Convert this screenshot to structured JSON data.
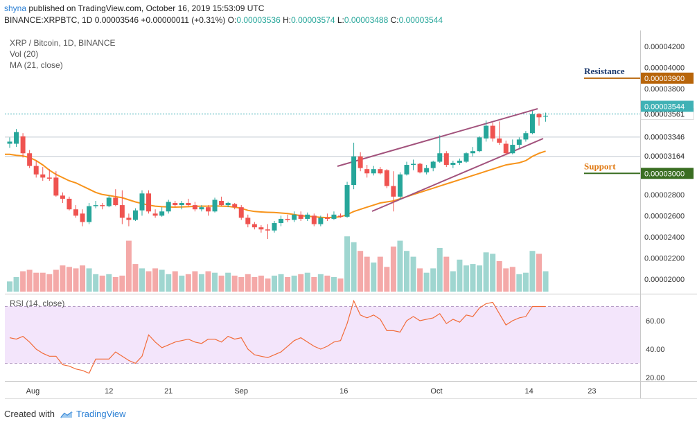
{
  "header": {
    "publisher": "shyna",
    "published_text": "published on TradingView.com, October 16, 2019 15:53:09 UTC",
    "symbol": "BINANCE:XRPBTC, 1D",
    "last": "0.00003546",
    "change": "+0.00000011 (+0.31%)",
    "o_label": "O:",
    "o": "0.00003536",
    "h_label": "H:",
    "h": "0.00003574",
    "l_label": "L:",
    "l": "0.00003488",
    "c_label": "C:",
    "c": "0.00003544"
  },
  "legends": {
    "title": "XRP / Bitcoin, 1D, BINANCE",
    "vol": "Vol (20)",
    "ma": "MA (21, close)",
    "rsi": "RSI (14, close)"
  },
  "annotations": {
    "resistance": "Resistance",
    "support": "Support"
  },
  "footer": {
    "created_with": "Created with",
    "brand": "TradingView"
  },
  "colors": {
    "up": "#26a69a",
    "down": "#ef5350",
    "ma": "#f7931a",
    "trend": "#a2527c",
    "resistance": "#b8650a",
    "support": "#3a6e22",
    "rsi_line": "#f26b38",
    "rsi_band": "#f3e5fb",
    "price_tag": "#3fb1b5"
  },
  "chart_data": {
    "type": "candlestick",
    "main_yticks": [
      "0.00004200",
      "0.00004000",
      "0.00003800",
      "0.00003561",
      "0.00003544",
      "0.00003346",
      "0.00003164",
      "0.00003000",
      "0.00002800",
      "0.00002600",
      "0.00002400",
      "0.00002200",
      "0.00002000"
    ],
    "xticks": [
      "Aug",
      "12",
      "21",
      "Sep",
      "16",
      "Oct",
      "14",
      "23"
    ],
    "price_labels": {
      "resistance_level": "0.00003900",
      "high_marker": "0.00003561",
      "current": "0.00003544",
      "level_a": "0.00003346",
      "level_b": "0.00003164",
      "support_level": "0.00003000"
    },
    "resistance_level": 3.9e-05,
    "support_level": 3e-05,
    "candles": [
      {
        "o": 3.28e-05,
        "h": 3.34e-05,
        "l": 3.24e-05,
        "c": 3.3e-05
      },
      {
        "o": 3.28e-05,
        "h": 3.42e-05,
        "l": 3.25e-05,
        "c": 3.39e-05
      },
      {
        "o": 3.35e-05,
        "h": 3.38e-05,
        "l": 3.15e-05,
        "c": 3.19e-05
      },
      {
        "o": 3.19e-05,
        "h": 3.22e-05,
        "l": 3.05e-05,
        "c": 3.07e-05
      },
      {
        "o": 3.07e-05,
        "h": 3.12e-05,
        "l": 2.96e-05,
        "c": 2.99e-05
      },
      {
        "o": 2.99e-05,
        "h": 3.06e-05,
        "l": 2.93e-05,
        "c": 2.96e-05
      },
      {
        "o": 2.96e-05,
        "h": 3.04e-05,
        "l": 2.93e-05,
        "c": 2.95e-05
      },
      {
        "o": 2.96e-05,
        "h": 3.02e-05,
        "l": 2.78e-05,
        "c": 2.79e-05
      },
      {
        "o": 2.79e-05,
        "h": 2.82e-05,
        "l": 2.72e-05,
        "c": 2.76e-05
      },
      {
        "o": 2.76e-05,
        "h": 2.78e-05,
        "l": 2.65e-05,
        "c": 2.66e-05
      },
      {
        "o": 2.66e-05,
        "h": 2.7e-05,
        "l": 2.58e-05,
        "c": 2.6e-05
      },
      {
        "o": 2.62e-05,
        "h": 2.66e-05,
        "l": 2.5e-05,
        "c": 2.54e-05
      },
      {
        "o": 2.54e-05,
        "h": 2.72e-05,
        "l": 2.52e-05,
        "c": 2.69e-05
      },
      {
        "o": 2.69e-05,
        "h": 2.74e-05,
        "l": 2.67e-05,
        "c": 2.7e-05
      },
      {
        "o": 2.7e-05,
        "h": 2.72e-05,
        "l": 2.66e-05,
        "c": 2.69e-05
      },
      {
        "o": 2.69e-05,
        "h": 2.79e-05,
        "l": 2.68e-05,
        "c": 2.77e-05
      },
      {
        "o": 2.77e-05,
        "h": 2.85e-05,
        "l": 2.69e-05,
        "c": 2.7e-05
      },
      {
        "o": 2.7e-05,
        "h": 2.84e-05,
        "l": 2.52e-05,
        "c": 2.58e-05
      },
      {
        "o": 2.58e-05,
        "h": 2.62e-05,
        "l": 2.5e-05,
        "c": 2.56e-05
      },
      {
        "o": 2.56e-05,
        "h": 2.67e-05,
        "l": 2.55e-05,
        "c": 2.65e-05
      },
      {
        "o": 2.65e-05,
        "h": 2.84e-05,
        "l": 2.6e-05,
        "c": 2.81e-05
      },
      {
        "o": 2.81e-05,
        "h": 2.84e-05,
        "l": 2.62e-05,
        "c": 2.64e-05
      },
      {
        "o": 2.62e-05,
        "h": 2.66e-05,
        "l": 2.58e-05,
        "c": 2.6e-05
      },
      {
        "o": 2.6e-05,
        "h": 2.68e-05,
        "l": 2.59e-05,
        "c": 2.64e-05
      },
      {
        "o": 2.64e-05,
        "h": 2.75e-05,
        "l": 2.62e-05,
        "c": 2.73e-05
      },
      {
        "o": 2.72e-05,
        "h": 2.74e-05,
        "l": 2.68e-05,
        "c": 2.7e-05
      },
      {
        "o": 2.7e-05,
        "h": 2.74e-05,
        "l": 2.66e-05,
        "c": 2.72e-05
      },
      {
        "o": 2.72e-05,
        "h": 2.76e-05,
        "l": 2.69e-05,
        "c": 2.7e-05
      },
      {
        "o": 2.7e-05,
        "h": 2.73e-05,
        "l": 2.64e-05,
        "c": 2.66e-05
      },
      {
        "o": 2.66e-05,
        "h": 2.7e-05,
        "l": 2.64e-05,
        "c": 2.68e-05
      },
      {
        "o": 2.68e-05,
        "h": 2.7e-05,
        "l": 2.6e-05,
        "c": 2.64e-05
      },
      {
        "o": 2.64e-05,
        "h": 2.77e-05,
        "l": 2.63e-05,
        "c": 2.75e-05
      },
      {
        "o": 2.74e-05,
        "h": 2.78e-05,
        "l": 2.69e-05,
        "c": 2.7e-05
      },
      {
        "o": 2.7e-05,
        "h": 2.73e-05,
        "l": 2.68e-05,
        "c": 2.72e-05
      },
      {
        "o": 2.71e-05,
        "h": 2.72e-05,
        "l": 2.66e-05,
        "c": 2.68e-05
      },
      {
        "o": 2.68e-05,
        "h": 2.7e-05,
        "l": 2.56e-05,
        "c": 2.58e-05
      },
      {
        "o": 2.58e-05,
        "h": 2.61e-05,
        "l": 2.49e-05,
        "c": 2.52e-05
      },
      {
        "o": 2.52e-05,
        "h": 2.54e-05,
        "l": 2.47e-05,
        "c": 2.49e-05
      },
      {
        "o": 2.49e-05,
        "h": 2.51e-05,
        "l": 2.44e-05,
        "c": 2.47e-05
      },
      {
        "o": 2.47e-05,
        "h": 2.52e-05,
        "l": 2.38e-05,
        "c": 2.46e-05
      },
      {
        "o": 2.46e-05,
        "h": 2.55e-05,
        "l": 2.44e-05,
        "c": 2.53e-05
      },
      {
        "o": 2.53e-05,
        "h": 2.6e-05,
        "l": 2.5e-05,
        "c": 2.57e-05
      },
      {
        "o": 2.57e-05,
        "h": 2.61e-05,
        "l": 2.54e-05,
        "c": 2.56e-05
      },
      {
        "o": 2.56e-05,
        "h": 2.64e-05,
        "l": 2.54e-05,
        "c": 2.61e-05
      },
      {
        "o": 2.61e-05,
        "h": 2.64e-05,
        "l": 2.55e-05,
        "c": 2.57e-05
      },
      {
        "o": 2.57e-05,
        "h": 2.63e-05,
        "l": 2.55e-05,
        "c": 2.61e-05
      },
      {
        "o": 2.6e-05,
        "h": 2.62e-05,
        "l": 2.5e-05,
        "c": 2.52e-05
      },
      {
        "o": 2.52e-05,
        "h": 2.6e-05,
        "l": 2.5e-05,
        "c": 2.58e-05
      },
      {
        "o": 2.58e-05,
        "h": 2.62e-05,
        "l": 2.55e-05,
        "c": 2.57e-05
      },
      {
        "o": 2.57e-05,
        "h": 2.64e-05,
        "l": 2.56e-05,
        "c": 2.61e-05
      },
      {
        "o": 2.6e-05,
        "h": 2.62e-05,
        "l": 2.58e-05,
        "c": 2.59e-05
      },
      {
        "o": 2.59e-05,
        "h": 2.92e-05,
        "l": 2.58e-05,
        "c": 2.89e-05
      },
      {
        "o": 2.89e-05,
        "h": 3.29e-05,
        "l": 2.85e-05,
        "c": 3.16e-05
      },
      {
        "o": 3.16e-05,
        "h": 3.2e-05,
        "l": 3.02e-05,
        "c": 3.05e-05
      },
      {
        "o": 3.04e-05,
        "h": 3.08e-05,
        "l": 2.96e-05,
        "c": 3e-05
      },
      {
        "o": 3e-05,
        "h": 3.07e-05,
        "l": 2.98e-05,
        "c": 3.04e-05
      },
      {
        "o": 3.04e-05,
        "h": 3.06e-05,
        "l": 2.99e-05,
        "c": 3e-05
      },
      {
        "o": 3.03e-05,
        "h": 3.04e-05,
        "l": 2.86e-05,
        "c": 2.88e-05
      },
      {
        "o": 2.88e-05,
        "h": 3.02e-05,
        "l": 2.64e-05,
        "c": 2.78e-05
      },
      {
        "o": 2.78e-05,
        "h": 3.01e-05,
        "l": 2.75e-05,
        "c": 2.99e-05
      },
      {
        "o": 2.99e-05,
        "h": 3.11e-05,
        "l": 2.98e-05,
        "c": 3.08e-05
      },
      {
        "o": 3.08e-05,
        "h": 3.13e-05,
        "l": 3.03e-05,
        "c": 3.09e-05
      },
      {
        "o": 3.09e-05,
        "h": 3.1e-05,
        "l": 3e-05,
        "c": 3.01e-05
      },
      {
        "o": 3.01e-05,
        "h": 3.08e-05,
        "l": 2.99e-05,
        "c": 3.05e-05
      },
      {
        "o": 3.05e-05,
        "h": 3.12e-05,
        "l": 3.02e-05,
        "c": 3.11e-05
      },
      {
        "o": 3.11e-05,
        "h": 3.36e-05,
        "l": 3.1e-05,
        "c": 3.19e-05
      },
      {
        "o": 3.19e-05,
        "h": 3.21e-05,
        "l": 3.06e-05,
        "c": 3.08e-05
      },
      {
        "o": 3.08e-05,
        "h": 3.12e-05,
        "l": 3.05e-05,
        "c": 3.1e-05
      },
      {
        "o": 3.1e-05,
        "h": 3.14e-05,
        "l": 3.08e-05,
        "c": 3.12e-05
      },
      {
        "o": 3.11e-05,
        "h": 3.2e-05,
        "l": 3.1e-05,
        "c": 3.19e-05
      },
      {
        "o": 3.19e-05,
        "h": 3.25e-05,
        "l": 3.16e-05,
        "c": 3.21e-05
      },
      {
        "o": 3.21e-05,
        "h": 3.35e-05,
        "l": 3.2e-05,
        "c": 3.34e-05
      },
      {
        "o": 3.33e-05,
        "h": 3.5e-05,
        "l": 3.3e-05,
        "c": 3.45e-05
      },
      {
        "o": 3.45e-05,
        "h": 3.48e-05,
        "l": 3.3e-05,
        "c": 3.33e-05
      },
      {
        "o": 3.33e-05,
        "h": 3.49e-05,
        "l": 3.27e-05,
        "c": 3.29e-05
      },
      {
        "o": 3.28e-05,
        "h": 3.31e-05,
        "l": 3.17e-05,
        "c": 3.19e-05
      },
      {
        "o": 3.19e-05,
        "h": 3.32e-05,
        "l": 3.18e-05,
        "c": 3.27e-05
      },
      {
        "o": 3.27e-05,
        "h": 3.34e-05,
        "l": 3.24e-05,
        "c": 3.32e-05
      },
      {
        "o": 3.32e-05,
        "h": 3.4e-05,
        "l": 3.3e-05,
        "c": 3.38e-05
      },
      {
        "o": 3.38e-05,
        "h": 3.59e-05,
        "l": 3.37e-05,
        "c": 3.56e-05
      },
      {
        "o": 3.56e-05,
        "h": 3.57e-05,
        "l": 3.45e-05,
        "c": 3.53e-05
      },
      {
        "o": 3.536e-05,
        "h": 3.574e-05,
        "l": 3.488e-05,
        "c": 3.544e-05
      }
    ],
    "ma21": [
      3.18e-05,
      3.17e-05,
      3.165e-05,
      3.15e-05,
      3.12e-05,
      3.08e-05,
      3.03e-05,
      2.99e-05,
      2.96e-05,
      2.93e-05,
      2.91e-05,
      2.88e-05,
      2.85e-05,
      2.82e-05,
      2.8e-05,
      2.79e-05,
      2.78e-05,
      2.77e-05,
      2.75e-05,
      2.73e-05,
      2.715e-05,
      2.7e-05,
      2.69e-05,
      2.685e-05,
      2.682e-05,
      2.68e-05,
      2.682e-05,
      2.685e-05,
      2.688e-05,
      2.69e-05,
      2.69e-05,
      2.692e-05,
      2.69e-05,
      2.688e-05,
      2.68e-05,
      2.67e-05,
      2.65e-05,
      2.64e-05,
      2.635e-05,
      2.632e-05,
      2.63e-05,
      2.625e-05,
      2.62e-05,
      2.61e-05,
      2.6e-05,
      2.595e-05,
      2.59e-05,
      2.585e-05,
      2.582e-05,
      2.585e-05,
      2.59e-05,
      2.61e-05,
      2.64e-05,
      2.66e-05,
      2.68e-05,
      2.7e-05,
      2.72e-05,
      2.73e-05,
      2.74e-05,
      2.76e-05,
      2.78e-05,
      2.8e-05,
      2.82e-05,
      2.84e-05,
      2.86e-05,
      2.88e-05,
      2.9e-05,
      2.92e-05,
      2.94e-05,
      2.96e-05,
      2.98e-05,
      3e-05,
      3.02e-05,
      3.04e-05,
      3.06e-05,
      3.08e-05,
      3.09e-05,
      3.1e-05,
      3.12e-05,
      3.16e-05,
      3.19e-05,
      3.21e-05
    ],
    "volume": [
      3.5,
      5,
      7,
      7.5,
      6.5,
      6.5,
      6,
      7.5,
      9,
      8.5,
      8,
      9,
      8,
      6,
      5.5,
      6,
      5,
      5.5,
      17.5,
      9.5,
      8,
      7,
      8,
      7.5,
      6,
      7,
      5.5,
      6,
      7,
      6,
      7,
      6.5,
      5.5,
      6.5,
      5.5,
      5,
      6,
      5,
      5.5,
      4.5,
      5.5,
      6,
      5,
      5.5,
      6,
      6.5,
      5,
      6,
      5.5,
      5,
      4.5,
      19,
      17,
      14,
      12,
      10,
      12,
      8.5,
      15.5,
      17.5,
      14,
      12,
      8,
      6.5,
      8,
      15,
      12,
      7,
      11,
      9,
      9.5,
      9,
      13.5,
      13,
      10.5,
      8,
      8.5,
      6,
      6.5,
      14,
      13,
      7
    ],
    "vol_colors": [
      "u",
      "u",
      "d",
      "d",
      "d",
      "d",
      "d",
      "d",
      "d",
      "d",
      "d",
      "d",
      "u",
      "u",
      "d",
      "u",
      "d",
      "d",
      "d",
      "d",
      "u",
      "d",
      "d",
      "u",
      "u",
      "d",
      "u",
      "d",
      "d",
      "u",
      "d",
      "u",
      "d",
      "u",
      "d",
      "d",
      "d",
      "d",
      "d",
      "d",
      "u",
      "u",
      "d",
      "u",
      "d",
      "u",
      "d",
      "u",
      "d",
      "u",
      "d",
      "u",
      "u",
      "d",
      "d",
      "u",
      "d",
      "d",
      "d",
      "u",
      "u",
      "u",
      "d",
      "u",
      "u",
      "u",
      "d",
      "u",
      "u",
      "u",
      "u",
      "u",
      "u",
      "u",
      "d",
      "d",
      "d",
      "u",
      "u",
      "u",
      "d",
      "u"
    ],
    "rsi": {
      "name": "RSI (14, close)",
      "yticks": [
        "60.00",
        "40.00",
        "20.00"
      ],
      "overbought": 70,
      "oversold": 30,
      "values": [
        48,
        47,
        49,
        45,
        40,
        37,
        35,
        35,
        29,
        28,
        26,
        25,
        23,
        33,
        33,
        33,
        38,
        35,
        32,
        30,
        35,
        50,
        45,
        41,
        43,
        45,
        46,
        47,
        45,
        44,
        47,
        47,
        45,
        49,
        47,
        48,
        40,
        36,
        35,
        34,
        36,
        38,
        42,
        46,
        48,
        45,
        42,
        40,
        42,
        45,
        46,
        58,
        74,
        64,
        62,
        64,
        61,
        53,
        53,
        52,
        60,
        63,
        60,
        61,
        62,
        65,
        58,
        61,
        59,
        64,
        63,
        69,
        72,
        73,
        65,
        57,
        60,
        62,
        63,
        70,
        70,
        70
      ]
    }
  }
}
